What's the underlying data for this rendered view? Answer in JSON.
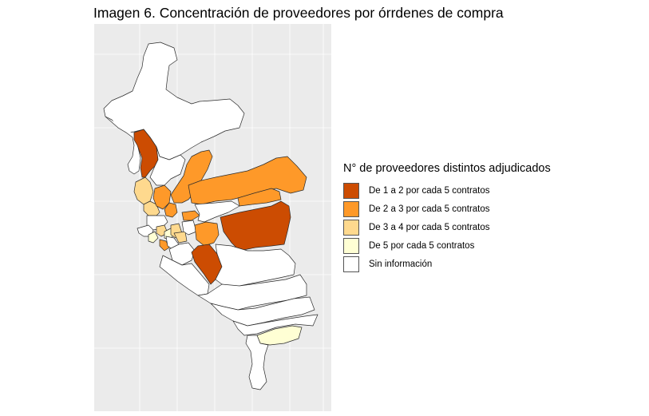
{
  "title": "Imagen 6. Concentración de proveedores por órrdenes de compra",
  "legend": {
    "title": "N° de proveedores distintos adjudicados",
    "items": [
      {
        "label": "De 1 a 2 por cada 5 contratos",
        "color": "#cc4c02"
      },
      {
        "label": "De 2 a 3 por cada 5 contratos",
        "color": "#fe9929"
      },
      {
        "label": "De 3 a 4 por cada 5 contratos",
        "color": "#fed98e"
      },
      {
        "label": "De 5 por cada 5 contratos",
        "color": "#ffffd4"
      },
      {
        "label": "Sin información",
        "color": "#ffffff"
      }
    ]
  },
  "colors": {
    "panel_background": "#ebebeb",
    "gridline": "#ffffff",
    "district_border": "#2b2b2b"
  }
}
